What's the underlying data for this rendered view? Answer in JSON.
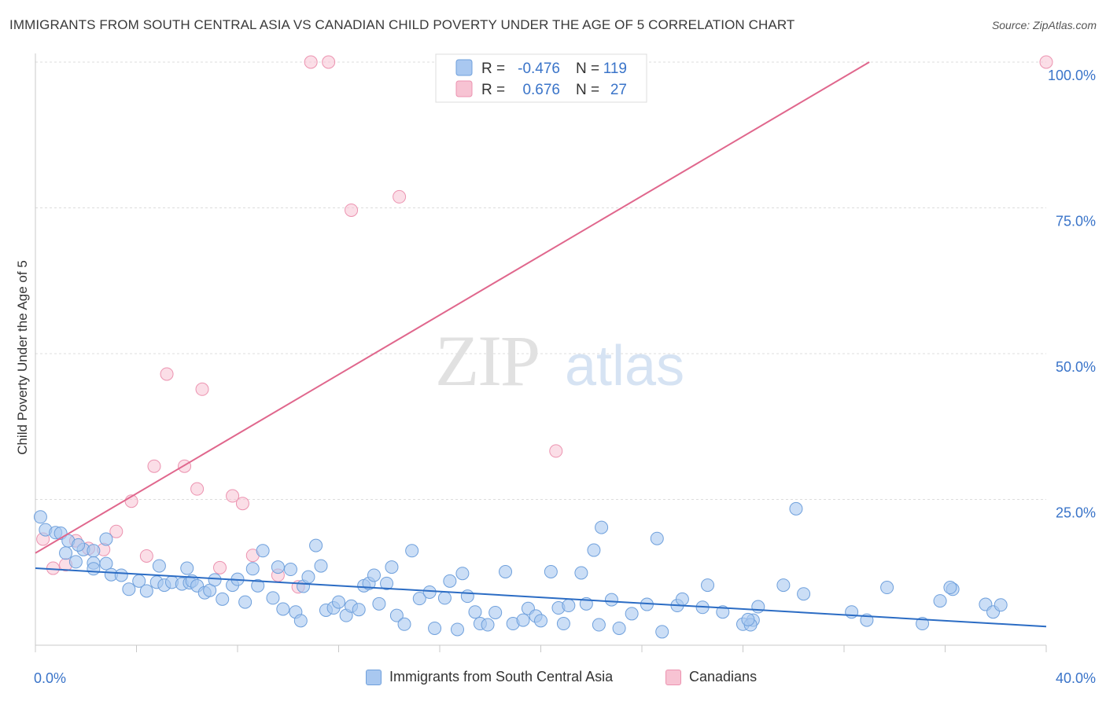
{
  "header": {
    "title": "IMMIGRANTS FROM SOUTH CENTRAL ASIA VS CANADIAN CHILD POVERTY UNDER THE AGE OF 5 CORRELATION CHART",
    "source": "Source: ZipAtlas.com"
  },
  "watermark": {
    "zip": "ZIP",
    "atlas": "atlas"
  },
  "colors": {
    "blue_fill": "#a9c8f0",
    "blue_stroke": "#6fa0dc",
    "blue_line": "#2b6cc4",
    "pink_fill": "#f7c3d3",
    "pink_stroke": "#ec93b0",
    "pink_line": "#e0678d",
    "axis_text": "#3a74c9",
    "grid": "#dddddd"
  },
  "legend_top": {
    "rows": [
      {
        "r_label": "R =",
        "r_value": "-0.476",
        "n_label": "N =",
        "n_value": "119"
      },
      {
        "r_label": "R =",
        "r_value": "0.676",
        "n_label": "N =",
        "n_value": "27"
      }
    ]
  },
  "legend_bottom": {
    "items": [
      {
        "label": "Immigrants from South Central Asia"
      },
      {
        "label": "Canadians"
      }
    ]
  },
  "chart_data": {
    "type": "scatter",
    "title": "IMMIGRANTS FROM SOUTH CENTRAL ASIA VS CANADIAN CHILD POVERTY UNDER THE AGE OF 5 CORRELATION CHART",
    "xlabel": "",
    "ylabel": "Child Poverty Under the Age of 5",
    "xlim": [
      0,
      40
    ],
    "ylim": [
      0,
      100
    ],
    "x_tick_labels": [
      "0.0%",
      "40.0%"
    ],
    "y_tick_labels": [
      "25.0%",
      "50.0%",
      "75.0%",
      "100.0%"
    ],
    "y_ticks": [
      25,
      50,
      75,
      100
    ],
    "grid": true,
    "legend_position": "top-center",
    "series": [
      {
        "name": "Immigrants from South Central Asia",
        "r": -0.476,
        "n": 119,
        "trend": [
          [
            0,
            13.2
          ],
          [
            40,
            3.2
          ]
        ],
        "points": [
          [
            0.2,
            22
          ],
          [
            0.4,
            19.8
          ],
          [
            0.8,
            19.3
          ],
          [
            1.0,
            19.2
          ],
          [
            1.3,
            17.9
          ],
          [
            1.2,
            15.8
          ],
          [
            1.6,
            14.3
          ],
          [
            1.9,
            16.4
          ],
          [
            2.3,
            16.2
          ],
          [
            2.8,
            18.2
          ],
          [
            1.7,
            17.2
          ],
          [
            2.3,
            14.1
          ],
          [
            2.8,
            14.0
          ],
          [
            2.3,
            13.1
          ],
          [
            3.0,
            12.1
          ],
          [
            3.4,
            12.0
          ],
          [
            3.7,
            9.6
          ],
          [
            4.1,
            11.0
          ],
          [
            4.4,
            9.3
          ],
          [
            4.8,
            10.8
          ],
          [
            4.9,
            13.6
          ],
          [
            5.1,
            10.3
          ],
          [
            5.4,
            10.8
          ],
          [
            5.8,
            10.5
          ],
          [
            6.0,
            13.2
          ],
          [
            6.1,
            10.7
          ],
          [
            6.2,
            11.0
          ],
          [
            6.4,
            10.2
          ],
          [
            6.7,
            9.0
          ],
          [
            6.9,
            9.4
          ],
          [
            7.1,
            11.2
          ],
          [
            7.4,
            7.9
          ],
          [
            7.8,
            10.3
          ],
          [
            8.0,
            11.3
          ],
          [
            8.3,
            7.4
          ],
          [
            8.6,
            13.1
          ],
          [
            8.8,
            10.2
          ],
          [
            9.0,
            16.2
          ],
          [
            9.4,
            8.1
          ],
          [
            9.6,
            13.4
          ],
          [
            9.8,
            6.2
          ],
          [
            10.1,
            13.0
          ],
          [
            10.3,
            5.7
          ],
          [
            10.6,
            10.1
          ],
          [
            10.8,
            11.7
          ],
          [
            10.5,
            4.2
          ],
          [
            11.1,
            17.1
          ],
          [
            11.3,
            13.6
          ],
          [
            11.5,
            6.0
          ],
          [
            11.8,
            6.4
          ],
          [
            12.0,
            7.4
          ],
          [
            12.3,
            5.1
          ],
          [
            12.5,
            6.7
          ],
          [
            12.8,
            6.1
          ],
          [
            13.0,
            10.2
          ],
          [
            13.2,
            10.6
          ],
          [
            13.4,
            12.0
          ],
          [
            13.6,
            7.1
          ],
          [
            13.9,
            10.6
          ],
          [
            14.1,
            13.4
          ],
          [
            14.3,
            5.1
          ],
          [
            14.6,
            3.6
          ],
          [
            14.9,
            16.2
          ],
          [
            15.2,
            8.0
          ],
          [
            15.6,
            9.1
          ],
          [
            15.8,
            2.9
          ],
          [
            16.2,
            8.1
          ],
          [
            16.4,
            11.0
          ],
          [
            16.7,
            2.7
          ],
          [
            16.9,
            12.3
          ],
          [
            17.1,
            8.4
          ],
          [
            17.4,
            5.7
          ],
          [
            17.6,
            3.7
          ],
          [
            17.9,
            3.5
          ],
          [
            18.2,
            5.6
          ],
          [
            18.6,
            12.6
          ],
          [
            18.9,
            3.7
          ],
          [
            19.3,
            4.3
          ],
          [
            19.5,
            6.3
          ],
          [
            19.8,
            5.0
          ],
          [
            20.0,
            4.2
          ],
          [
            20.4,
            12.6
          ],
          [
            20.7,
            6.4
          ],
          [
            20.9,
            3.7
          ],
          [
            21.1,
            6.8
          ],
          [
            21.6,
            12.4
          ],
          [
            21.8,
            7.1
          ],
          [
            22.1,
            16.3
          ],
          [
            22.3,
            3.5
          ],
          [
            22.4,
            20.2
          ],
          [
            22.8,
            7.8
          ],
          [
            23.1,
            2.9
          ],
          [
            23.6,
            5.4
          ],
          [
            24.2,
            7.0
          ],
          [
            24.6,
            18.3
          ],
          [
            24.8,
            2.3
          ],
          [
            25.4,
            6.8
          ],
          [
            25.6,
            7.9
          ],
          [
            26.4,
            6.5
          ],
          [
            26.6,
            10.3
          ],
          [
            27.2,
            5.7
          ],
          [
            28.0,
            3.6
          ],
          [
            28.4,
            4.3
          ],
          [
            28.6,
            6.6
          ],
          [
            29.6,
            10.3
          ],
          [
            30.4,
            8.8
          ],
          [
            28.3,
            3.5
          ],
          [
            28.2,
            4.4
          ],
          [
            30.1,
            23.4
          ],
          [
            32.3,
            5.7
          ],
          [
            32.9,
            4.3
          ],
          [
            33.7,
            9.9
          ],
          [
            35.1,
            3.7
          ],
          [
            35.8,
            7.6
          ],
          [
            36.3,
            9.6
          ],
          [
            37.6,
            7.0
          ],
          [
            37.9,
            5.7
          ],
          [
            36.2,
            9.9
          ],
          [
            38.2,
            6.9
          ]
        ]
      },
      {
        "name": "Canadians",
        "r": 0.676,
        "n": 27,
        "trend": [
          [
            0,
            15.8
          ],
          [
            33,
            100
          ]
        ],
        "points": [
          [
            0.3,
            18.2
          ],
          [
            0.7,
            13.2
          ],
          [
            1.2,
            13.8
          ],
          [
            1.6,
            17.9
          ],
          [
            2.1,
            16.6
          ],
          [
            2.7,
            16.4
          ],
          [
            3.2,
            19.5
          ],
          [
            3.8,
            24.7
          ],
          [
            4.4,
            15.3
          ],
          [
            4.7,
            30.7
          ],
          [
            5.2,
            46.5
          ],
          [
            5.9,
            30.7
          ],
          [
            6.4,
            26.8
          ],
          [
            6.6,
            43.9
          ],
          [
            7.3,
            13.3
          ],
          [
            7.8,
            25.6
          ],
          [
            8.2,
            24.3
          ],
          [
            8.6,
            15.4
          ],
          [
            9.6,
            12.0
          ],
          [
            10.4,
            10.0
          ],
          [
            10.9,
            100
          ],
          [
            11.6,
            100
          ],
          [
            12.5,
            74.6
          ],
          [
            14.4,
            76.9
          ],
          [
            20.8,
            100
          ],
          [
            20.6,
            33.3
          ],
          [
            40.0,
            100
          ]
        ]
      }
    ]
  }
}
